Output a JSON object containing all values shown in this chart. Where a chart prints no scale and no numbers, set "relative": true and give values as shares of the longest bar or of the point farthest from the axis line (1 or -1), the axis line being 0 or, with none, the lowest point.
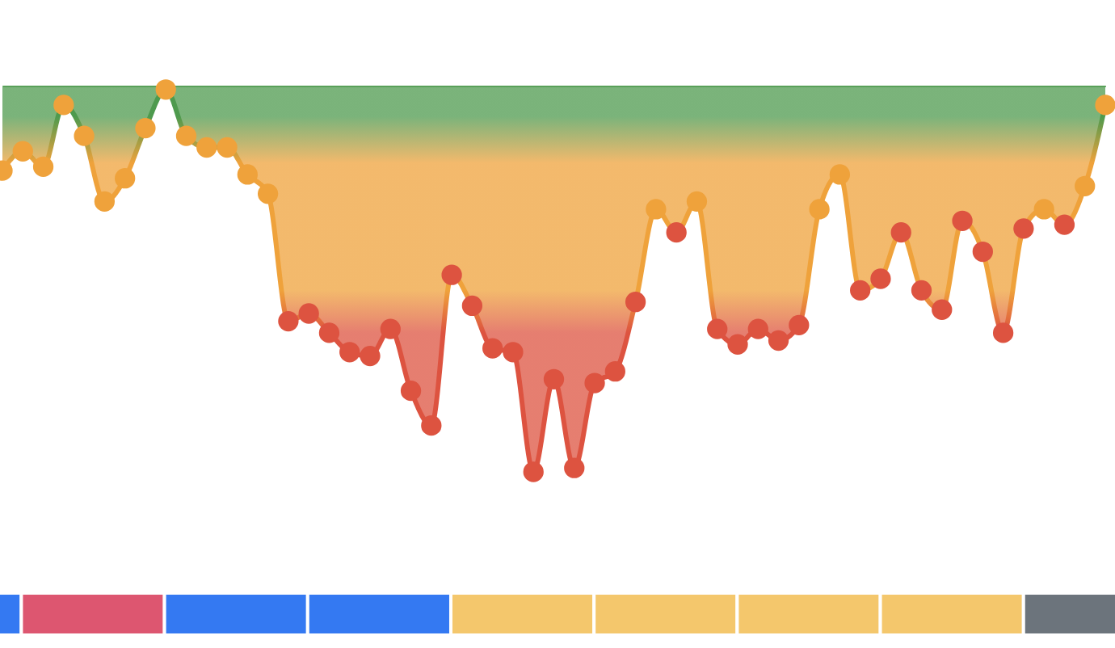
{
  "chart_data": [
    {
      "type": "area",
      "relative": true,
      "marker": "circle",
      "color": "#4e9a4e",
      "categories": [
        null,
        null,
        null,
        null,
        null,
        null,
        null,
        null,
        null,
        null,
        null,
        null,
        null,
        null,
        null,
        null,
        null,
        null,
        null,
        null,
        null,
        null,
        null,
        null,
        null,
        null,
        null,
        null,
        null,
        null,
        null,
        null,
        null,
        null,
        null,
        null,
        null,
        null,
        null,
        null,
        null,
        null,
        null,
        null,
        null,
        null,
        null,
        null,
        null,
        null,
        null,
        null,
        null,
        null,
        null
      ],
      "values": [
        -0.22,
        -0.17,
        -0.21,
        -0.05,
        -0.13,
        -0.3,
        -0.24,
        -0.11,
        -0.01,
        -0.13,
        -0.16,
        -0.16,
        -0.23,
        -0.28,
        -0.61,
        -0.59,
        -0.64,
        -0.69,
        -0.7,
        -0.63,
        -0.79,
        -0.88,
        -0.49,
        -0.57,
        -0.68,
        -0.69,
        -1.0,
        -0.76,
        -0.99,
        -0.77,
        -0.74,
        -0.56,
        -0.32,
        -0.38,
        -0.3,
        -0.63,
        -0.67,
        -0.63,
        -0.66,
        -0.62,
        -0.32,
        -0.23,
        -0.53,
        -0.5,
        -0.38,
        -0.53,
        -0.58,
        -0.35,
        -0.43,
        -0.64,
        -0.37,
        -0.32,
        -0.36,
        -0.26,
        -0.05
      ],
      "colors": [
        "#efa23b",
        "#efa23b",
        "#efa23b",
        "#efa23b",
        "#efa23b",
        "#efa23b",
        "#efa23b",
        "#efa23b",
        "#efa23b",
        "#efa23b",
        "#efa23b",
        "#efa23b",
        "#efa23b",
        "#efa23b",
        "#dd5340",
        "#dd5340",
        "#dd5340",
        "#dd5340",
        "#dd5340",
        "#dd5340",
        "#dd5340",
        "#dd5340",
        "#dd5340",
        "#dd5340",
        "#dd5340",
        "#dd5340",
        "#dd5340",
        "#dd5340",
        "#dd5340",
        "#dd5340",
        "#dd5340",
        "#dd5340",
        "#efa23b",
        "#dd5340",
        "#efa23b",
        "#dd5340",
        "#dd5340",
        "#dd5340",
        "#dd5340",
        "#dd5340",
        "#efa23b",
        "#efa23b",
        "#dd5340",
        "#dd5340",
        "#dd5340",
        "#dd5340",
        "#dd5340",
        "#dd5340",
        "#dd5340",
        "#dd5340",
        "#dd5340",
        "#efa23b",
        "#dd5340",
        "#efa23b",
        "#efa23b"
      ]
    },
    {
      "type": "bar",
      "relative": true,
      "categories": [
        null,
        null,
        null,
        null,
        null,
        null,
        null,
        null,
        null
      ],
      "values": [
        1,
        1,
        1,
        1,
        1,
        1,
        1,
        1,
        1
      ],
      "colors": [
        "#3479f2",
        "#dd5670",
        "#3479f2",
        "#3479f2",
        "#f4c76c",
        "#f4c76c",
        "#f4c76c",
        "#f4c76c",
        "#6c747c"
      ]
    }
  ]
}
